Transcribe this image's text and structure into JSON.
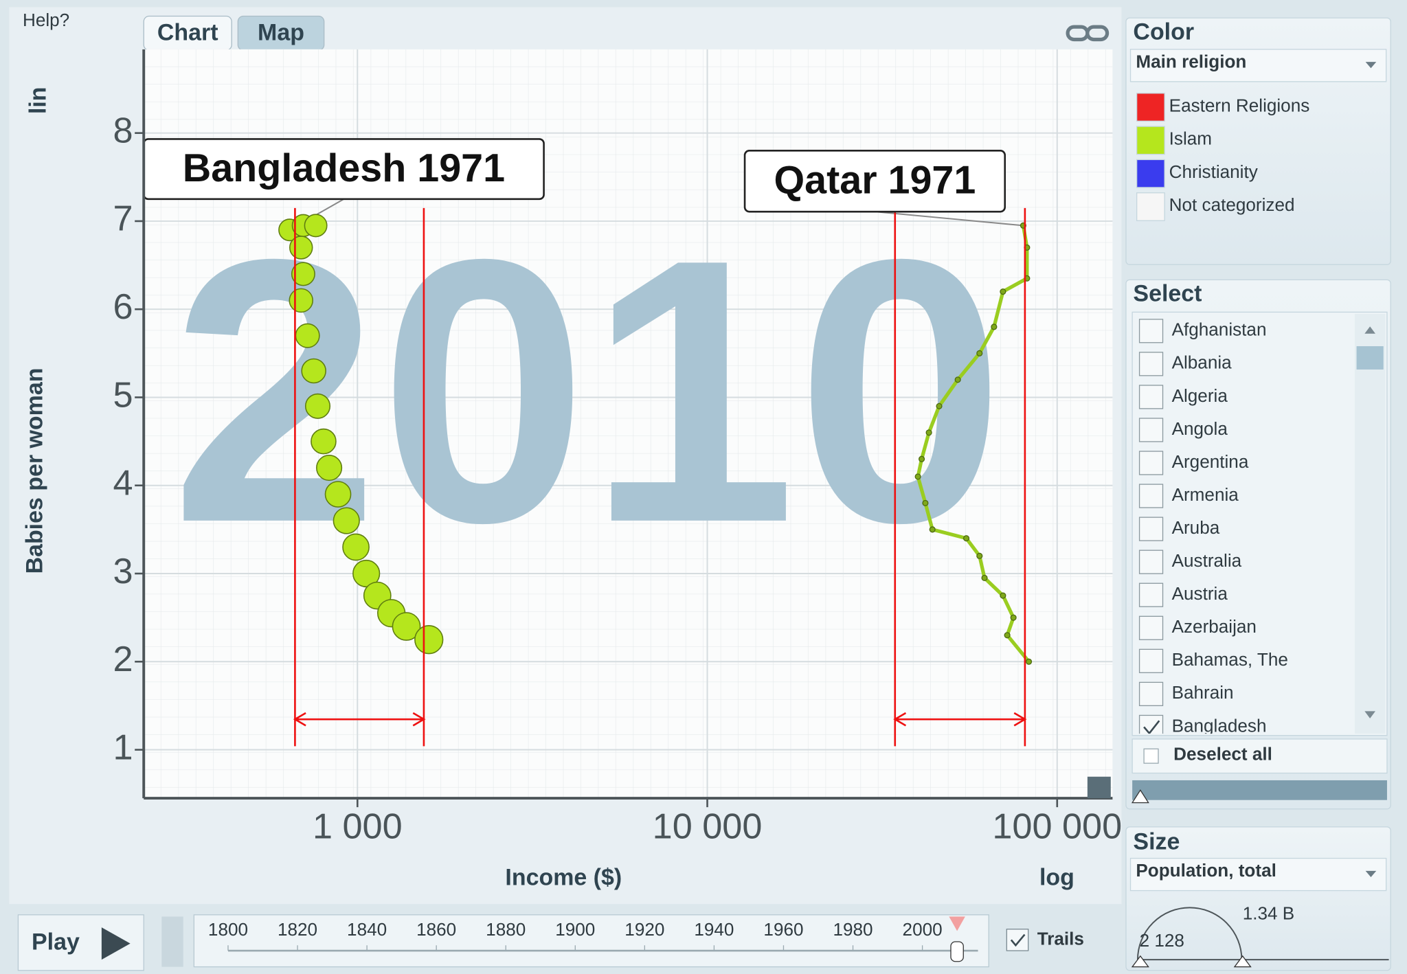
{
  "ui": {
    "help": "Help?",
    "tabs": [
      "Chart",
      "Map"
    ],
    "color": {
      "title": "Color",
      "indicator": "Main religion",
      "legend": [
        {
          "label": "Eastern Religions",
          "color": "#ee2424"
        },
        {
          "label": "Islam",
          "color": "#b5e61d"
        },
        {
          "label": "Christianity",
          "color": "#3a3cee"
        },
        {
          "label": "Not categorized",
          "color": "#f6f6f6"
        }
      ]
    },
    "select": {
      "title": "Select",
      "countries": [
        {
          "label": "Afghanistan",
          "checked": false
        },
        {
          "label": "Albania",
          "checked": false
        },
        {
          "label": "Algeria",
          "checked": false
        },
        {
          "label": "Angola",
          "checked": false
        },
        {
          "label": "Argentina",
          "checked": false
        },
        {
          "label": "Armenia",
          "checked": false
        },
        {
          "label": "Aruba",
          "checked": false
        },
        {
          "label": "Australia",
          "checked": false
        },
        {
          "label": "Austria",
          "checked": false
        },
        {
          "label": "Azerbaijan",
          "checked": false
        },
        {
          "label": "Bahamas, The",
          "checked": false
        },
        {
          "label": "Bahrain",
          "checked": false
        },
        {
          "label": "Bangladesh",
          "checked": true
        }
      ],
      "deselect": "Deselect all"
    },
    "size": {
      "title": "Size",
      "indicator": "Population, total",
      "max": "1.34 B",
      "min": "2 128"
    },
    "play": "Play",
    "trails": "Trails",
    "timeline_ticks": [
      1800,
      1820,
      1840,
      1860,
      1880,
      1900,
      1920,
      1940,
      1960,
      1980,
      2000
    ]
  },
  "chart_data": {
    "type": "scatter",
    "year": 2010,
    "xlabel": "Income ($)",
    "ylabel": "Babies per woman",
    "xscale_label": "log",
    "yscale_label": "lin",
    "log_x": true,
    "grid": true,
    "xlim": [
      245,
      144000
    ],
    "ylim": [
      0.45,
      8.95
    ],
    "xticks": [
      {
        "value": 1000,
        "label": "1 000"
      },
      {
        "value": 10000,
        "label": "10 000"
      },
      {
        "value": 100000,
        "label": "100 000"
      }
    ],
    "yticks": [
      1,
      2,
      3,
      4,
      5,
      6,
      7,
      8
    ],
    "series": [
      {
        "label": "Bangladesh 1971",
        "color": "#b5e61d",
        "mode": "bubbles",
        "x": [
          640,
          700,
          760,
          690,
          700,
          690,
          720,
          750,
          770,
          800,
          830,
          880,
          930,
          990,
          1060,
          1140,
          1250,
          1380,
          1600
        ],
        "y": [
          6.9,
          6.95,
          6.95,
          6.7,
          6.4,
          6.1,
          5.7,
          5.3,
          4.9,
          4.5,
          4.2,
          3.9,
          3.6,
          3.3,
          3.0,
          2.75,
          2.55,
          2.4,
          2.25
        ],
        "range": [
          663,
          1548
        ]
      },
      {
        "label": "Qatar 1971",
        "color": "#9acd20",
        "mode": "line",
        "x": [
          80000,
          82000,
          82000,
          70000,
          66000,
          60000,
          52000,
          46000,
          43000,
          41000,
          40000,
          42000,
          44000,
          55000,
          60000,
          62000,
          70000,
          75000,
          72000,
          83000
        ],
        "y": [
          6.95,
          6.7,
          6.35,
          6.2,
          5.8,
          5.5,
          5.2,
          4.9,
          4.6,
          4.3,
          4.1,
          3.8,
          3.5,
          3.4,
          3.2,
          2.95,
          2.75,
          2.5,
          2.3,
          2.0
        ],
        "range": [
          34400,
          80900
        ]
      }
    ]
  }
}
